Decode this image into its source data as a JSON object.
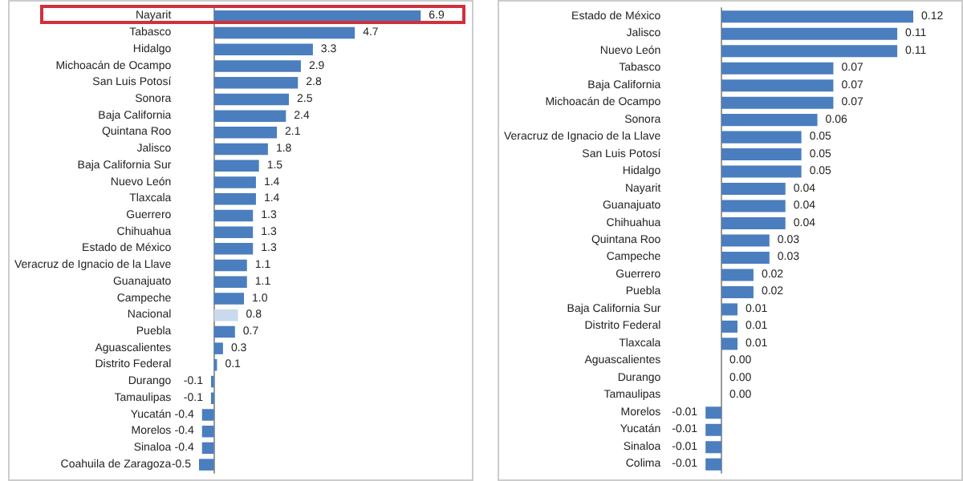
{
  "chart_data": [
    {
      "type": "bar",
      "orientation": "horizontal",
      "categories": [
        "Nayarit",
        "Tabasco",
        "Hidalgo",
        "Michoacán de Ocampo",
        "San Luis Potosí",
        "Sonora",
        "Baja California",
        "Quintana Roo",
        "Jalisco",
        "Baja California Sur",
        "Nuevo León",
        "Tlaxcala",
        "Guerrero",
        "Chihuahua",
        "Estado de México",
        "Veracruz de Ignacio de la Llave",
        "Guanajuato",
        "Campeche",
        "Nacional",
        "Puebla",
        "Aguascalientes",
        "Distrito Federal",
        "Durango",
        "Tamaulipas",
        "Yucatán",
        "Morelos",
        "Sinaloa",
        "Coahuila de Zaragoza"
      ],
      "values": [
        6.9,
        4.7,
        3.3,
        2.9,
        2.8,
        2.5,
        2.4,
        2.1,
        1.8,
        1.5,
        1.4,
        1.4,
        1.3,
        1.3,
        1.3,
        1.1,
        1.1,
        1.0,
        0.8,
        0.7,
        0.3,
        0.1,
        -0.1,
        -0.1,
        -0.4,
        -0.4,
        -0.4,
        -0.5
      ],
      "colors": [
        "#4a7ebf",
        "#4a7ebf",
        "#4a7ebf",
        "#4a7ebf",
        "#4a7ebf",
        "#4a7ebf",
        "#4a7ebf",
        "#4a7ebf",
        "#4a7ebf",
        "#4a7ebf",
        "#4a7ebf",
        "#4a7ebf",
        "#4a7ebf",
        "#4a7ebf",
        "#4a7ebf",
        "#4a7ebf",
        "#4a7ebf",
        "#4a7ebf",
        "#c9d9ee",
        "#4a7ebf",
        "#4a7ebf",
        "#4a7ebf",
        "#4a7ebf",
        "#4a7ebf",
        "#4a7ebf",
        "#4a7ebf",
        "#4a7ebf",
        "#4a7ebf"
      ],
      "value_labels": [
        "6.9",
        "4.7",
        "3.3",
        "2.9",
        "2.8",
        "2.5",
        "2.4",
        "2.1",
        "1.8",
        "1.5",
        "1.4",
        "1.4",
        "1.3",
        "1.3",
        "1.3",
        "1.1",
        "1.1",
        "1.0",
        "0.8",
        "0.7",
        "0.3",
        "0.1",
        "-0.1",
        "-0.1",
        "-0.4",
        "-0.4",
        "-0.4",
        "-0.5"
      ]
    },
    {
      "type": "bar",
      "orientation": "horizontal",
      "color": "#4a7ebf",
      "categories": [
        "Estado de México",
        "Jalisco",
        "Nuevo León",
        "Tabasco",
        "Baja California",
        "Michoacán de Ocampo",
        "Sonora",
        "Veracruz de Ignacio de la Llave",
        "San Luis Potosí",
        "Hidalgo",
        "Nayarit",
        "Guanajuato",
        "Chihuahua",
        "Quintana Roo",
        "Campeche",
        "Guerrero",
        "Puebla",
        "Baja California Sur",
        "Distrito Federal",
        "Tlaxcala",
        "Aguascalientes",
        "Durango",
        "Tamaulipas",
        "Morelos",
        "Yucatán",
        "Sinaloa",
        "Colima"
      ],
      "values": [
        0.12,
        0.11,
        0.11,
        0.07,
        0.07,
        0.07,
        0.06,
        0.05,
        0.05,
        0.05,
        0.04,
        0.04,
        0.04,
        0.03,
        0.03,
        0.02,
        0.02,
        0.01,
        0.01,
        0.01,
        0.0,
        0.0,
        0.0,
        -0.01,
        -0.01,
        -0.01,
        -0.01
      ],
      "value_labels": [
        "0.12",
        "0.11",
        "0.11",
        "0.07",
        "0.07",
        "0.07",
        "0.06",
        "0.05",
        "0.05",
        "0.05",
        "0.04",
        "0.04",
        "0.04",
        "0.03",
        "0.03",
        "0.02",
        "0.02",
        "0.01",
        "0.01",
        "0.01",
        "0.00",
        "0.00",
        "0.00",
        "-0.01",
        "-0.01",
        "-0.01",
        "-0.01"
      ]
    }
  ]
}
